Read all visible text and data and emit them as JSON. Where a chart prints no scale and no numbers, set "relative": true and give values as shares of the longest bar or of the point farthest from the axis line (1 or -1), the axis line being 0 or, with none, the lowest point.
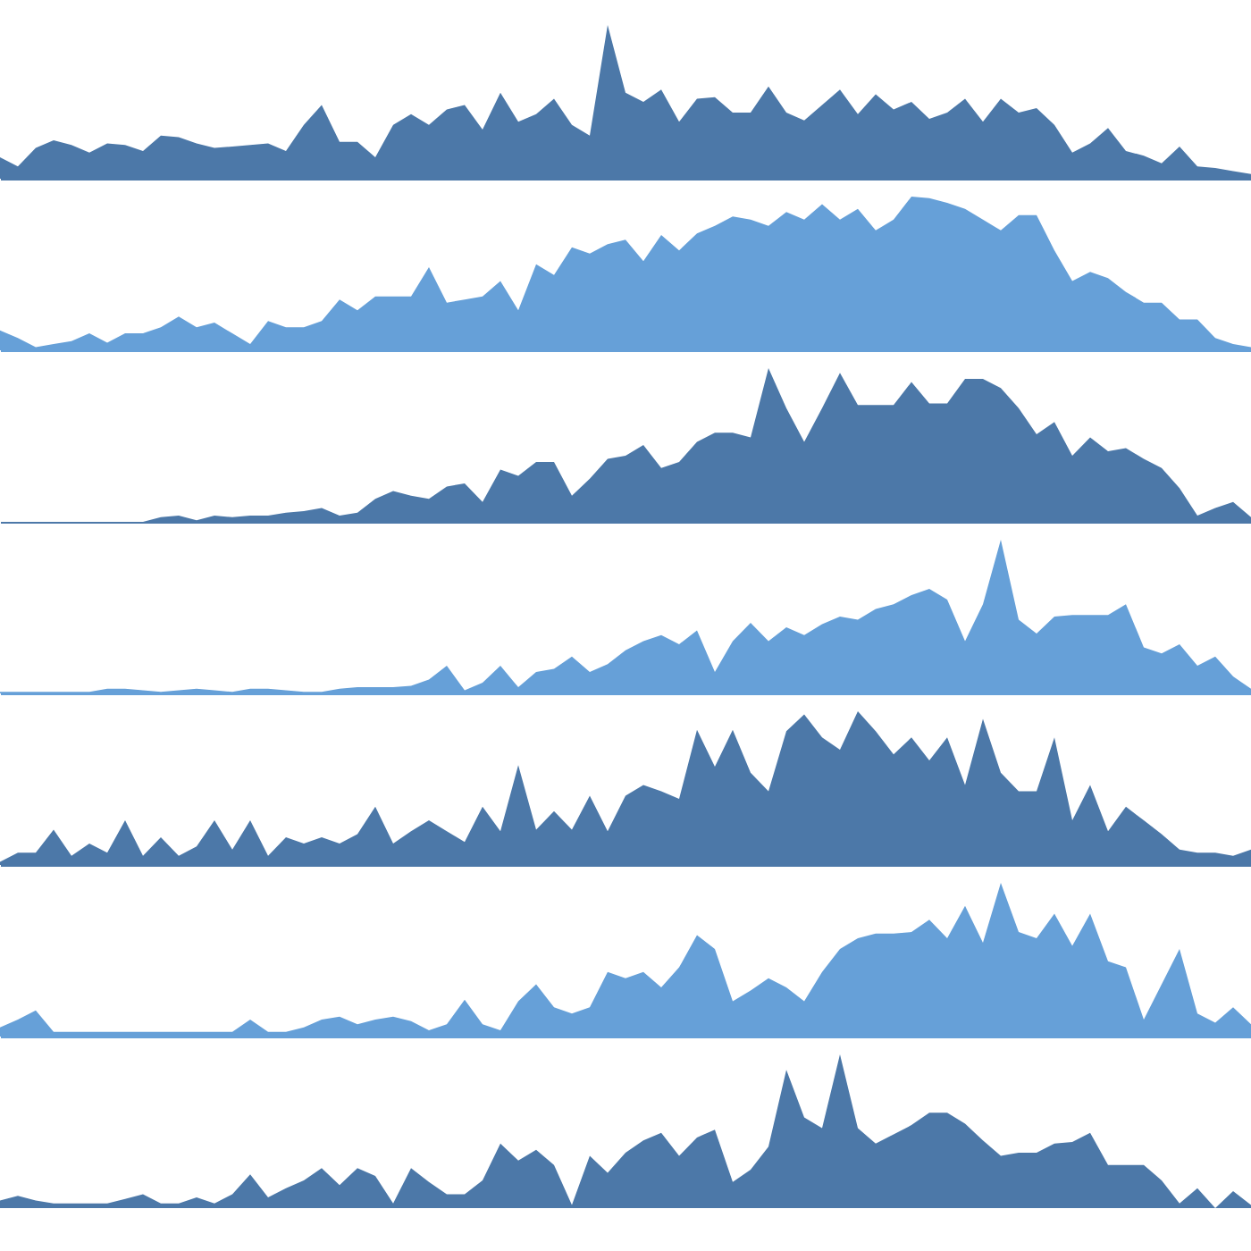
{
  "chart_data": [
    {
      "type": "area",
      "relative": true,
      "color": "#4c78a8",
      "categories": [
        null,
        null,
        null,
        null,
        null,
        null,
        null,
        null,
        null,
        null,
        null,
        null,
        null,
        null,
        null,
        null,
        null,
        null,
        null,
        null,
        null,
        null,
        null,
        null,
        null,
        null,
        null,
        null,
        null,
        null,
        null,
        null,
        null,
        null,
        null,
        null,
        null,
        null,
        null,
        null,
        null,
        null,
        null,
        null,
        null,
        null,
        null,
        null,
        null,
        null,
        null,
        null,
        null,
        null,
        null,
        null,
        null,
        null,
        null,
        null,
        null,
        null,
        null,
        null,
        null,
        null,
        null,
        null,
        null,
        null,
        null
      ],
      "values": [
        0.14,
        0.08,
        0.2,
        0.25,
        0.22,
        0.17,
        0.23,
        0.22,
        0.18,
        0.28,
        0.27,
        0.23,
        0.2,
        0.21,
        0.22,
        0.23,
        0.18,
        0.35,
        0.48,
        0.24,
        0.24,
        0.14,
        0.35,
        0.42,
        0.35,
        0.45,
        0.48,
        0.32,
        0.56,
        0.37,
        0.42,
        0.52,
        0.35,
        0.28,
        1,
        0.56,
        0.5,
        0.58,
        0.37,
        0.52,
        0.53,
        0.43,
        0.43,
        0.6,
        0.43,
        0.38,
        0.48,
        0.58,
        0.42,
        0.55,
        0.45,
        0.5,
        0.39,
        0.43,
        0.52,
        0.37,
        0.52,
        0.43,
        0.46,
        0.35,
        0.17,
        0.23,
        0.33,
        0.18,
        0.15,
        0.1,
        0.21,
        0.08,
        0.07,
        0.05,
        0.03
      ]
    },
    {
      "type": "area",
      "relative": true,
      "color": "#66a0d8",
      "categories": [
        null,
        null,
        null,
        null,
        null,
        null,
        null,
        null,
        null,
        null,
        null,
        null,
        null,
        null,
        null,
        null,
        null,
        null,
        null,
        null,
        null,
        null,
        null,
        null,
        null,
        null,
        null,
        null,
        null,
        null,
        null,
        null,
        null,
        null,
        null,
        null,
        null,
        null,
        null,
        null,
        null,
        null,
        null,
        null,
        null,
        null,
        null,
        null,
        null,
        null,
        null,
        null,
        null,
        null,
        null,
        null,
        null,
        null,
        null,
        null,
        null,
        null,
        null,
        null,
        null,
        null,
        null,
        null,
        null,
        null,
        null
      ],
      "values": [
        0.13,
        0.08,
        0.02,
        0.04,
        0.06,
        0.11,
        0.05,
        0.11,
        0.11,
        0.15,
        0.22,
        0.15,
        0.18,
        0.11,
        0.04,
        0.19,
        0.15,
        0.15,
        0.19,
        0.33,
        0.26,
        0.35,
        0.35,
        0.35,
        0.54,
        0.31,
        0.33,
        0.35,
        0.45,
        0.26,
        0.56,
        0.49,
        0.67,
        0.63,
        0.69,
        0.72,
        0.58,
        0.75,
        0.65,
        0.76,
        0.81,
        0.87,
        0.85,
        0.81,
        0.9,
        0.85,
        0.95,
        0.85,
        0.92,
        0.78,
        0.85,
        1,
        0.99,
        0.96,
        0.92,
        0.85,
        0.78,
        0.88,
        0.88,
        0.65,
        0.45,
        0.51,
        0.47,
        0.38,
        0.31,
        0.31,
        0.2,
        0.2,
        0.08,
        0.04,
        0.02
      ]
    },
    {
      "type": "area",
      "relative": true,
      "color": "#4c78a8",
      "categories": [
        null,
        null,
        null,
        null,
        null,
        null,
        null,
        null,
        null,
        null,
        null,
        null,
        null,
        null,
        null,
        null,
        null,
        null,
        null,
        null,
        null,
        null,
        null,
        null,
        null,
        null,
        null,
        null,
        null,
        null,
        null,
        null,
        null,
        null,
        null,
        null,
        null,
        null,
        null,
        null,
        null,
        null,
        null,
        null,
        null,
        null,
        null,
        null,
        null,
        null,
        null,
        null,
        null,
        null,
        null,
        null,
        null,
        null,
        null,
        null,
        null,
        null,
        null,
        null,
        null,
        null,
        null,
        null,
        null,
        null,
        null
      ],
      "values": [
        0,
        0,
        0,
        0,
        0,
        0,
        0,
        0,
        0,
        0.03,
        0.04,
        0.01,
        0.04,
        0.03,
        0.04,
        0.04,
        0.06,
        0.07,
        0.09,
        0.04,
        0.06,
        0.15,
        0.2,
        0.17,
        0.15,
        0.23,
        0.25,
        0.13,
        0.34,
        0.3,
        0.39,
        0.39,
        0.17,
        0.28,
        0.41,
        0.43,
        0.5,
        0.35,
        0.39,
        0.52,
        0.58,
        0.58,
        0.55,
        1,
        0.74,
        0.52,
        0.74,
        0.97,
        0.76,
        0.76,
        0.76,
        0.91,
        0.77,
        0.77,
        0.93,
        0.93,
        0.87,
        0.74,
        0.57,
        0.65,
        0.43,
        0.55,
        0.46,
        0.48,
        0.41,
        0.35,
        0.22,
        0.04,
        0.09,
        0.13,
        0.03
      ]
    },
    {
      "type": "area",
      "relative": true,
      "color": "#66a0d8",
      "categories": [
        null,
        null,
        null,
        null,
        null,
        null,
        null,
        null,
        null,
        null,
        null,
        null,
        null,
        null,
        null,
        null,
        null,
        null,
        null,
        null,
        null,
        null,
        null,
        null,
        null,
        null,
        null,
        null,
        null,
        null,
        null,
        null,
        null,
        null,
        null,
        null,
        null,
        null,
        null,
        null,
        null,
        null,
        null,
        null,
        null,
        null,
        null,
        null,
        null,
        null,
        null,
        null,
        null,
        null,
        null,
        null,
        null,
        null,
        null,
        null,
        null,
        null,
        null,
        null,
        null,
        null,
        null,
        null,
        null,
        null,
        null
      ],
      "values": [
        0.01,
        0.01,
        0.01,
        0.01,
        0.01,
        0.01,
        0.03,
        0.03,
        0.02,
        0.01,
        0.02,
        0.03,
        0.02,
        0.01,
        0.03,
        0.03,
        0.02,
        0.01,
        0.01,
        0.03,
        0.04,
        0.04,
        0.04,
        0.05,
        0.09,
        0.18,
        0.02,
        0.07,
        0.18,
        0.04,
        0.14,
        0.16,
        0.24,
        0.14,
        0.19,
        0.28,
        0.34,
        0.38,
        0.32,
        0.41,
        0.14,
        0.34,
        0.46,
        0.34,
        0.43,
        0.38,
        0.45,
        0.5,
        0.48,
        0.55,
        0.58,
        0.64,
        0.68,
        0.61,
        0.34,
        0.58,
        1,
        0.48,
        0.39,
        0.5,
        0.51,
        0.51,
        0.51,
        0.58,
        0.3,
        0.26,
        0.32,
        0.18,
        0.24,
        0.11,
        0.03
      ]
    },
    {
      "type": "area",
      "relative": true,
      "color": "#4c78a8",
      "categories": [
        null,
        null,
        null,
        null,
        null,
        null,
        null,
        null,
        null,
        null,
        null,
        null,
        null,
        null,
        null,
        null,
        null,
        null,
        null,
        null,
        null,
        null,
        null,
        null,
        null,
        null,
        null,
        null,
        null,
        null,
        null,
        null,
        null,
        null,
        null,
        null,
        null,
        null,
        null,
        null,
        null,
        null,
        null,
        null,
        null,
        null,
        null,
        null,
        null,
        null,
        null,
        null,
        null,
        null,
        null,
        null,
        null,
        null,
        null,
        null,
        null,
        null,
        null,
        null,
        null,
        null,
        null,
        null,
        null,
        null,
        null
      ],
      "values": [
        0.02,
        0.08,
        0.08,
        0.23,
        0.06,
        0.14,
        0.08,
        0.29,
        0.06,
        0.18,
        0.06,
        0.12,
        0.29,
        0.1,
        0.29,
        0.06,
        0.18,
        0.14,
        0.18,
        0.14,
        0.2,
        0.38,
        0.14,
        0.22,
        0.29,
        0.22,
        0.15,
        0.38,
        0.22,
        0.65,
        0.23,
        0.35,
        0.23,
        0.45,
        0.22,
        0.45,
        0.52,
        0.48,
        0.43,
        0.88,
        0.64,
        0.88,
        0.6,
        0.48,
        0.87,
        0.98,
        0.83,
        0.75,
        1,
        0.87,
        0.72,
        0.83,
        0.68,
        0.83,
        0.52,
        0.95,
        0.6,
        0.48,
        0.48,
        0.83,
        0.29,
        0.52,
        0.22,
        0.38,
        0.29,
        0.2,
        0.1,
        0.08,
        0.08,
        0.06,
        0.1
      ]
    },
    {
      "type": "area",
      "relative": true,
      "color": "#66a0d8",
      "categories": [
        null,
        null,
        null,
        null,
        null,
        null,
        null,
        null,
        null,
        null,
        null,
        null,
        null,
        null,
        null,
        null,
        null,
        null,
        null,
        null,
        null,
        null,
        null,
        null,
        null,
        null,
        null,
        null,
        null,
        null,
        null,
        null,
        null,
        null,
        null,
        null,
        null,
        null,
        null,
        null,
        null,
        null,
        null,
        null,
        null,
        null,
        null,
        null,
        null,
        null,
        null,
        null,
        null,
        null,
        null,
        null,
        null,
        null,
        null,
        null,
        null,
        null,
        null,
        null,
        null,
        null,
        null,
        null,
        null,
        null,
        null
      ],
      "values": [
        0.06,
        0.11,
        0.17,
        0.03,
        0.03,
        0.03,
        0.03,
        0.03,
        0.03,
        0.03,
        0.03,
        0.03,
        0.03,
        0.03,
        0.11,
        0.03,
        0.03,
        0.06,
        0.11,
        0.13,
        0.08,
        0.11,
        0.13,
        0.1,
        0.04,
        0.08,
        0.24,
        0.08,
        0.04,
        0.23,
        0.34,
        0.19,
        0.15,
        0.19,
        0.42,
        0.38,
        0.42,
        0.32,
        0.45,
        0.66,
        0.57,
        0.23,
        0.3,
        0.38,
        0.32,
        0.23,
        0.42,
        0.57,
        0.64,
        0.67,
        0.67,
        0.68,
        0.76,
        0.64,
        0.85,
        0.61,
        1,
        0.68,
        0.64,
        0.8,
        0.59,
        0.8,
        0.49,
        0.45,
        0.11,
        0.34,
        0.57,
        0.15,
        0.09,
        0.19,
        0.08
      ]
    },
    {
      "type": "area",
      "relative": true,
      "color": "#4c78a8",
      "categories": [
        null,
        null,
        null,
        null,
        null,
        null,
        null,
        null,
        null,
        null,
        null,
        null,
        null,
        null,
        null,
        null,
        null,
        null,
        null,
        null,
        null,
        null,
        null,
        null,
        null,
        null,
        null,
        null,
        null,
        null,
        null,
        null,
        null,
        null,
        null,
        null,
        null,
        null,
        null,
        null,
        null,
        null,
        null,
        null,
        null,
        null,
        null,
        null,
        null,
        null,
        null,
        null,
        null,
        null,
        null,
        null,
        null,
        null,
        null,
        null,
        null,
        null,
        null,
        null,
        null,
        null,
        null,
        null,
        null,
        null,
        null
      ],
      "values": [
        0.05,
        0.08,
        0.05,
        0.03,
        0.03,
        0.03,
        0.03,
        0.06,
        0.09,
        0.03,
        0.03,
        0.07,
        0.03,
        0.09,
        0.22,
        0.07,
        0.13,
        0.18,
        0.26,
        0.15,
        0.26,
        0.21,
        0.03,
        0.26,
        0.17,
        0.09,
        0.09,
        0.18,
        0.42,
        0.31,
        0.38,
        0.28,
        0.02,
        0.34,
        0.23,
        0.36,
        0.44,
        0.49,
        0.34,
        0.46,
        0.51,
        0.17,
        0.25,
        0.4,
        0.9,
        0.59,
        0.52,
        1,
        0.52,
        0.42,
        0.48,
        0.54,
        0.62,
        0.62,
        0.55,
        0.44,
        0.34,
        0.36,
        0.36,
        0.42,
        0.43,
        0.49,
        0.28,
        0.28,
        0.28,
        0.18,
        0.03,
        0.13,
        0,
        0.11,
        0.02
      ]
    }
  ]
}
